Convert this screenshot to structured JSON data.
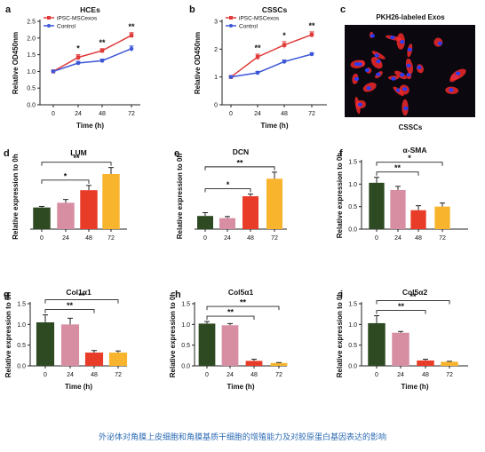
{
  "caption": "外泌体对角膜上皮细胞和角膜基质干细胞的增殖能力及对胶原蛋白基因表达的影响",
  "colors": {
    "ipsc": "#e03a3a",
    "control": "#3d57d8",
    "bar_0h": "#2e4a23",
    "bar_24h": "#d78ea3",
    "bar_48h": "#e83b28",
    "bar_72h": "#f7b42c",
    "microscopy_bg": "#0b0810",
    "nuclei": "#2a3cf5",
    "membrane": "#ff2a2a"
  },
  "micrograph": {
    "letter": "c",
    "title": "PKH26-labeled Exos",
    "label": "CSSCs"
  },
  "chart_data": [
    {
      "letter": "a",
      "type": "line",
      "title": "HCEs",
      "xlabel": "Time (h)",
      "ylabel": "Relative OD450nm",
      "x": [
        0,
        24,
        48,
        72
      ],
      "ylim": [
        0,
        2.5
      ],
      "yticks": [
        "0.0",
        "0.5",
        "1.0",
        "1.5",
        "2.0",
        "2.5"
      ],
      "series": [
        {
          "name": "iPSC-MSCexos",
          "color_key": "ipsc",
          "values": [
            1.0,
            1.42,
            1.62,
            2.08
          ],
          "errors": [
            0.03,
            0.08,
            0.06,
            0.08
          ]
        },
        {
          "name": "Control",
          "color_key": "control",
          "values": [
            1.0,
            1.25,
            1.32,
            1.68
          ],
          "errors": [
            0.03,
            0.05,
            0.05,
            0.08
          ]
        }
      ],
      "significance": [
        "",
        "*",
        "**",
        "**"
      ]
    },
    {
      "letter": "b",
      "type": "line",
      "title": "CSSCs",
      "xlabel": "Time (h)",
      "ylabel": "Relative OD450nm",
      "x": [
        0,
        24,
        48,
        72
      ],
      "ylim": [
        0,
        3
      ],
      "yticks": [
        "0",
        "1",
        "2",
        "3"
      ],
      "series": [
        {
          "name": "iPSC-MSCexos",
          "color_key": "ipsc",
          "values": [
            1.0,
            1.72,
            2.15,
            2.52
          ],
          "errors": [
            0.03,
            0.1,
            0.12,
            0.1
          ]
        },
        {
          "name": "Control",
          "color_key": "control",
          "values": [
            1.0,
            1.15,
            1.55,
            1.82
          ],
          "errors": [
            0.03,
            0.05,
            0.06,
            0.05
          ]
        }
      ],
      "significance": [
        "",
        "**",
        "*",
        "**"
      ]
    },
    {
      "letter": "d",
      "type": "bar",
      "title": "LUM",
      "xlabel": "",
      "ylabel": "Relative expression to 0h",
      "categories": [
        "0",
        "24",
        "48",
        "72"
      ],
      "values": [
        1.0,
        1.22,
        1.8,
        2.55
      ],
      "errors": [
        0.05,
        0.15,
        0.22,
        0.3
      ],
      "ylim": [
        0,
        3
      ],
      "yticks": [],
      "show_yaxis": false,
      "brackets": [
        {
          "from": 0,
          "to": 2,
          "label": "*"
        },
        {
          "from": 0,
          "to": 3,
          "label": "**"
        }
      ]
    },
    {
      "letter": "e",
      "type": "bar",
      "title": "DCN",
      "xlabel": "",
      "ylabel": "Relative expression to 0h",
      "categories": [
        "0",
        "24",
        "48",
        "72"
      ],
      "values": [
        1.2,
        1.0,
        3.0,
        4.6
      ],
      "errors": [
        0.3,
        0.15,
        0.2,
        0.6
      ],
      "ylim": [
        0,
        6
      ],
      "yticks": [],
      "show_yaxis": false,
      "brackets": [
        {
          "from": 0,
          "to": 2,
          "label": "*"
        },
        {
          "from": 0,
          "to": 3,
          "label": "**"
        }
      ]
    },
    {
      "letter": "f",
      "type": "bar",
      "title": "α-SMA",
      "xlabel": "",
      "ylabel": "Relative expression to 0h",
      "categories": [
        "0",
        "24",
        "48",
        "72"
      ],
      "values": [
        1.03,
        0.87,
        0.42,
        0.5
      ],
      "errors": [
        0.12,
        0.08,
        0.1,
        0.08
      ],
      "ylim": [
        0,
        1.5
      ],
      "yticks": [
        "0.0",
        "0.5",
        "1.0",
        "1.5"
      ],
      "show_yaxis": true,
      "brackets": [
        {
          "from": 0,
          "to": 2,
          "label": "**"
        },
        {
          "from": 0,
          "to": 3,
          "label": "*"
        }
      ]
    },
    {
      "letter": "g",
      "type": "bar",
      "title": "Col1α1",
      "xlabel": "Time (h)",
      "ylabel": "Relative expression to 0h",
      "categories": [
        "0",
        "24",
        "48",
        "72"
      ],
      "values": [
        1.05,
        1.0,
        0.32,
        0.32
      ],
      "errors": [
        0.18,
        0.15,
        0.05,
        0.04
      ],
      "ylim": [
        0,
        1.5
      ],
      "yticks": [
        "0.0",
        "0.5",
        "1.0",
        "1.5"
      ],
      "show_yaxis": true,
      "brackets": [
        {
          "from": 0,
          "to": 2,
          "label": "**"
        },
        {
          "from": 0,
          "to": 3,
          "label": "**"
        }
      ]
    },
    {
      "letter": "h",
      "type": "bar",
      "title": "Col5α1",
      "xlabel": "Time (h)",
      "ylabel": "Relative expression to 0h",
      "categories": [
        "0",
        "24",
        "48",
        "72"
      ],
      "values": [
        1.02,
        0.98,
        0.12,
        0.07
      ],
      "errors": [
        0.05,
        0.04,
        0.04,
        0.01
      ],
      "ylim": [
        0,
        1.5
      ],
      "yticks": [
        "0.0",
        "0.5",
        "1.0",
        "1.5"
      ],
      "show_yaxis": true,
      "brackets": [
        {
          "from": 0,
          "to": 2,
          "label": "**"
        },
        {
          "from": 0,
          "to": 3,
          "label": "**"
        }
      ]
    },
    {
      "letter": "i",
      "type": "bar",
      "title": "Col5α2",
      "xlabel": "Time (h)",
      "ylabel": "Relative expression to 0h",
      "categories": [
        "0",
        "24",
        "48",
        "72"
      ],
      "values": [
        1.03,
        0.8,
        0.13,
        0.1
      ],
      "errors": [
        0.18,
        0.03,
        0.03,
        0.01
      ],
      "ylim": [
        0,
        1.5
      ],
      "yticks": [
        "0.0",
        "0.5",
        "1.0",
        "1.5"
      ],
      "show_yaxis": true,
      "brackets": [
        {
          "from": 0,
          "to": 2,
          "label": "**"
        },
        {
          "from": 0,
          "to": 3,
          "label": "**"
        }
      ]
    }
  ]
}
